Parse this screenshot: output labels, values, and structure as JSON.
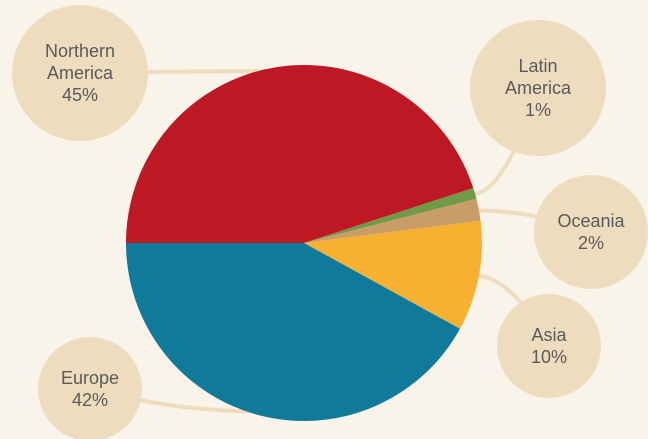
{
  "chart_data": {
    "type": "pie",
    "title": "",
    "slices": [
      {
        "label": [
          "Northern",
          "America"
        ],
        "value": 45,
        "value_label": "45%",
        "color": "#bd1823"
      },
      {
        "label": [
          "Latin",
          "America"
        ],
        "value": 1,
        "value_label": "1%",
        "color": "#6f9a46"
      },
      {
        "label": [
          "Oceania"
        ],
        "value": 2,
        "value_label": "2%",
        "color": "#c99d66"
      },
      {
        "label": [
          "Asia"
        ],
        "value": 10,
        "value_label": "10%",
        "color": "#f7b131"
      },
      {
        "label": [
          "Europe"
        ],
        "value": 42,
        "value_label": "42%",
        "color": "#107a9a"
      }
    ],
    "label_style": "circular callouts with leader lines",
    "bubble_color": "#eedcbe",
    "leader_color": "#eedcbe"
  }
}
